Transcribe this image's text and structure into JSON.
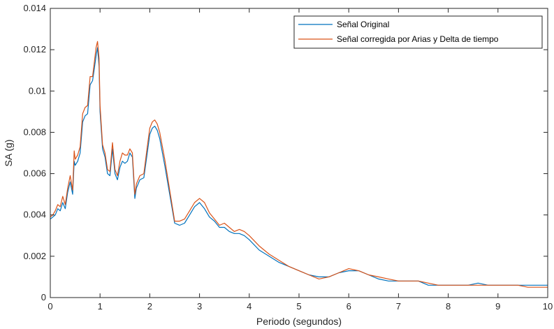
{
  "chart_data": {
    "type": "line",
    "xlabel": "Periodo (segundos)",
    "ylabel": "SA (g)",
    "xlim": [
      0,
      10
    ],
    "ylim": [
      0,
      0.014
    ],
    "xticks": [
      "0",
      "1",
      "2",
      "3",
      "4",
      "5",
      "6",
      "7",
      "8",
      "9",
      "10"
    ],
    "yticks": [
      "0",
      "0.002",
      "0.004",
      "0.006",
      "0.008",
      "0.01",
      "0.012",
      "0.014"
    ],
    "grid": false,
    "legend_position": "top-right",
    "colors": {
      "series1": "#0072BD",
      "series2": "#D95319",
      "axes": "#262626"
    },
    "series": [
      {
        "name": "Señal Original",
        "x": [
          0,
          0.05,
          0.1,
          0.15,
          0.2,
          0.25,
          0.3,
          0.35,
          0.4,
          0.45,
          0.48,
          0.5,
          0.55,
          0.6,
          0.65,
          0.7,
          0.75,
          0.8,
          0.85,
          0.88,
          0.92,
          0.95,
          0.98,
          1.0,
          1.05,
          1.1,
          1.15,
          1.2,
          1.25,
          1.3,
          1.35,
          1.4,
          1.45,
          1.5,
          1.55,
          1.6,
          1.65,
          1.7,
          1.73,
          1.8,
          1.88,
          1.95,
          2.0,
          2.05,
          2.1,
          2.15,
          2.2,
          2.3,
          2.4,
          2.5,
          2.6,
          2.7,
          2.8,
          2.9,
          3.0,
          3.1,
          3.2,
          3.3,
          3.4,
          3.5,
          3.6,
          3.7,
          3.8,
          3.9,
          4.0,
          4.2,
          4.4,
          4.6,
          4.8,
          5.0,
          5.2,
          5.4,
          5.6,
          5.8,
          6.0,
          6.2,
          6.4,
          6.6,
          6.8,
          7.0,
          7.2,
          7.4,
          7.6,
          7.8,
          8.0,
          8.2,
          8.4,
          8.6,
          8.8,
          9.0,
          9.2,
          9.4,
          9.6,
          9.8,
          10.0
        ],
        "values": [
          0.0038,
          0.0039,
          0.004,
          0.0043,
          0.0042,
          0.0046,
          0.0043,
          0.0051,
          0.0056,
          0.005,
          0.0066,
          0.0064,
          0.0066,
          0.007,
          0.0085,
          0.0088,
          0.0089,
          0.0103,
          0.0105,
          0.011,
          0.0117,
          0.0121,
          0.0112,
          0.009,
          0.0072,
          0.0068,
          0.006,
          0.0059,
          0.0072,
          0.006,
          0.0057,
          0.0063,
          0.0066,
          0.0065,
          0.0066,
          0.007,
          0.0068,
          0.0048,
          0.0053,
          0.0057,
          0.0058,
          0.007,
          0.0079,
          0.0082,
          0.0083,
          0.0081,
          0.0077,
          0.0064,
          0.005,
          0.0036,
          0.0035,
          0.0036,
          0.004,
          0.0044,
          0.0046,
          0.0043,
          0.0039,
          0.0037,
          0.0034,
          0.0034,
          0.0032,
          0.0031,
          0.0031,
          0.003,
          0.0028,
          0.0023,
          0.002,
          0.0017,
          0.0015,
          0.0013,
          0.0011,
          0.001,
          0.001,
          0.0012,
          0.0013,
          0.0013,
          0.0011,
          0.0009,
          0.0008,
          0.0008,
          0.0008,
          0.0008,
          0.0006,
          0.0006,
          0.0006,
          0.0006,
          0.0006,
          0.0007,
          0.0006,
          0.0006,
          0.0006,
          0.0006,
          0.0006,
          0.0006,
          0.0006
        ]
      },
      {
        "name": "Señal corregida por Arias y Delta de tiempo",
        "x": [
          0,
          0.05,
          0.1,
          0.15,
          0.2,
          0.25,
          0.3,
          0.35,
          0.4,
          0.45,
          0.48,
          0.5,
          0.55,
          0.6,
          0.65,
          0.7,
          0.75,
          0.8,
          0.85,
          0.88,
          0.92,
          0.95,
          0.98,
          1.0,
          1.05,
          1.1,
          1.15,
          1.2,
          1.25,
          1.3,
          1.35,
          1.4,
          1.45,
          1.5,
          1.55,
          1.6,
          1.65,
          1.7,
          1.73,
          1.8,
          1.88,
          1.95,
          2.0,
          2.05,
          2.1,
          2.15,
          2.2,
          2.3,
          2.4,
          2.5,
          2.6,
          2.7,
          2.8,
          2.9,
          3.0,
          3.1,
          3.2,
          3.3,
          3.4,
          3.5,
          3.6,
          3.7,
          3.8,
          3.9,
          4.0,
          4.2,
          4.4,
          4.6,
          4.8,
          5.0,
          5.2,
          5.4,
          5.6,
          5.8,
          6.0,
          6.2,
          6.4,
          6.6,
          6.8,
          7.0,
          7.2,
          7.4,
          7.6,
          7.8,
          8.0,
          8.2,
          8.4,
          8.6,
          8.8,
          9.0,
          9.2,
          9.4,
          9.6,
          9.8,
          10.0
        ],
        "values": [
          0.0039,
          0.004,
          0.0042,
          0.0045,
          0.0044,
          0.0049,
          0.0045,
          0.0053,
          0.0059,
          0.0052,
          0.0071,
          0.0067,
          0.0069,
          0.0073,
          0.0089,
          0.0092,
          0.0093,
          0.0107,
          0.0107,
          0.0113,
          0.0121,
          0.0124,
          0.0116,
          0.0093,
          0.0074,
          0.007,
          0.0062,
          0.0061,
          0.0075,
          0.0062,
          0.0059,
          0.0066,
          0.007,
          0.0069,
          0.0069,
          0.0072,
          0.007,
          0.005,
          0.0055,
          0.0059,
          0.006,
          0.0073,
          0.0082,
          0.0085,
          0.0086,
          0.0084,
          0.008,
          0.0067,
          0.0052,
          0.0037,
          0.0037,
          0.0038,
          0.0042,
          0.0046,
          0.0048,
          0.0046,
          0.0041,
          0.0038,
          0.0035,
          0.0036,
          0.0034,
          0.0032,
          0.0033,
          0.0032,
          0.003,
          0.0025,
          0.0021,
          0.0018,
          0.0015,
          0.0013,
          0.0011,
          0.0009,
          0.001,
          0.0012,
          0.0014,
          0.0013,
          0.0011,
          0.001,
          0.0009,
          0.0008,
          0.0008,
          0.0008,
          0.0007,
          0.0006,
          0.0006,
          0.0006,
          0.0006,
          0.0006,
          0.0006,
          0.0006,
          0.0006,
          0.0006,
          0.0005,
          0.0005,
          0.0005
        ]
      }
    ]
  }
}
